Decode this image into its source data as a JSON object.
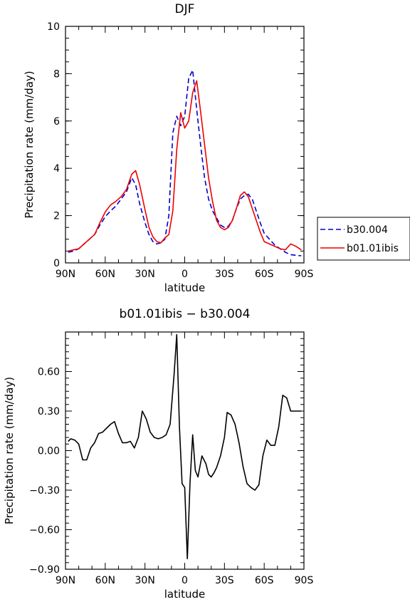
{
  "chart_data": [
    {
      "type": "line",
      "title": "DJF",
      "xlabel": "latitude",
      "ylabel": "Precipitation rate (mm/day)",
      "xlim": [
        90,
        -90
      ],
      "ylim": [
        0,
        10
      ],
      "x_ticks": [
        {
          "value": 90,
          "label": "90N"
        },
        {
          "value": 60,
          "label": "60N"
        },
        {
          "value": 30,
          "label": "30N"
        },
        {
          "value": 0,
          "label": "0"
        },
        {
          "value": -30,
          "label": "30S"
        },
        {
          "value": -60,
          "label": "60S"
        },
        {
          "value": -90,
          "label": "90S"
        }
      ],
      "y_ticks": [
        {
          "value": 0,
          "label": "0"
        },
        {
          "value": 2,
          "label": "2"
        },
        {
          "value": 4,
          "label": "4"
        },
        {
          "value": 6,
          "label": "6"
        },
        {
          "value": 8,
          "label": "8"
        },
        {
          "value": 10,
          "label": "10"
        }
      ],
      "legend": "right",
      "series": [
        {
          "name": "b30.004",
          "color": "#0000cc",
          "dash": "dashed",
          "x": [
            88,
            84,
            80,
            76,
            72,
            68,
            64,
            60,
            56,
            52,
            48,
            44,
            40,
            37,
            34,
            30,
            27,
            24,
            21,
            18,
            15,
            12,
            9,
            6,
            3,
            0,
            -3,
            -6,
            -9,
            -12,
            -15,
            -18,
            -21,
            -24,
            -27,
            -30,
            -33,
            -36,
            -39,
            -42,
            -45,
            -48,
            -51,
            -54,
            -57,
            -60,
            -64,
            -68,
            -72,
            -76,
            -80,
            -84,
            -88
          ],
          "y": [
            0.45,
            0.5,
            0.6,
            0.8,
            1.0,
            1.2,
            1.6,
            1.95,
            2.2,
            2.4,
            2.7,
            3.0,
            3.6,
            3.3,
            2.5,
            1.7,
            1.2,
            0.9,
            0.8,
            0.85,
            1.0,
            2.0,
            5.5,
            6.2,
            5.8,
            6.2,
            7.8,
            8.15,
            6.5,
            5.0,
            3.6,
            2.7,
            2.2,
            1.9,
            1.6,
            1.5,
            1.55,
            1.8,
            2.3,
            2.7,
            2.85,
            2.9,
            2.7,
            2.2,
            1.7,
            1.25,
            1.0,
            0.75,
            0.6,
            0.45,
            0.35,
            0.32,
            0.3
          ]
        },
        {
          "name": "b01.01ibis",
          "color": "#ee0000",
          "dash": "solid",
          "x": [
            88,
            84,
            80,
            76,
            72,
            68,
            64,
            60,
            56,
            52,
            48,
            44,
            40,
            37,
            34,
            30,
            27,
            24,
            21,
            18,
            15,
            12,
            9,
            6,
            3,
            0,
            -3,
            -6,
            -9,
            -12,
            -15,
            -18,
            -21,
            -24,
            -27,
            -30,
            -33,
            -36,
            -39,
            -42,
            -45,
            -48,
            -51,
            -54,
            -57,
            -60,
            -64,
            -68,
            -72,
            -76,
            -80,
            -84,
            -88
          ],
          "y": [
            0.5,
            0.55,
            0.6,
            0.8,
            1.0,
            1.2,
            1.7,
            2.15,
            2.45,
            2.6,
            2.8,
            3.1,
            3.75,
            3.9,
            3.3,
            2.25,
            1.5,
            1.1,
            0.9,
            0.85,
            1.05,
            1.2,
            2.2,
            4.8,
            6.35,
            5.7,
            6.0,
            7.2,
            7.7,
            6.4,
            5.0,
            3.6,
            2.6,
            1.8,
            1.5,
            1.4,
            1.5,
            1.8,
            2.3,
            2.85,
            3.0,
            2.8,
            2.3,
            1.8,
            1.3,
            0.9,
            0.8,
            0.7,
            0.6,
            0.55,
            0.8,
            0.7,
            0.55
          ]
        }
      ]
    },
    {
      "type": "line",
      "title": "b01.01ibis − b30.004",
      "xlabel": "latitude",
      "ylabel": "Precipitation rate (mm/day)",
      "xlim": [
        90,
        -90
      ],
      "ylim": [
        -0.9,
        0.9
      ],
      "x_ticks": [
        {
          "value": 90,
          "label": "90N"
        },
        {
          "value": 60,
          "label": "60N"
        },
        {
          "value": 30,
          "label": "30N"
        },
        {
          "value": 0,
          "label": "0"
        },
        {
          "value": -30,
          "label": "30S"
        },
        {
          "value": -60,
          "label": "60S"
        },
        {
          "value": -90,
          "label": "90S"
        }
      ],
      "y_ticks": [
        {
          "value": -0.9,
          "label": "−0.90"
        },
        {
          "value": -0.6,
          "label": "−0.60"
        },
        {
          "value": -0.3,
          "label": "−0.30"
        },
        {
          "value": 0,
          "label": "0.00"
        },
        {
          "value": 0.3,
          "label": "0.30"
        },
        {
          "value": 0.6,
          "label": "0.60"
        }
      ],
      "series": [
        {
          "color": "#000000",
          "dash": "solid",
          "x": [
            88,
            86,
            83,
            80,
            77,
            74,
            71,
            68,
            65,
            62,
            59,
            56,
            53,
            50,
            47,
            44,
            41,
            38,
            35,
            32,
            29,
            26,
            23,
            20,
            17,
            14,
            11,
            8,
            6,
            4,
            2,
            0,
            -2,
            -4,
            -6,
            -8,
            -10,
            -13,
            -16,
            -18,
            -20,
            -22,
            -24,
            -27,
            -30,
            -32,
            -35,
            -38,
            -41,
            -44,
            -47,
            -50,
            -53,
            -56,
            -59,
            -62,
            -65,
            -68,
            -71,
            -74,
            -77,
            -80,
            -83,
            -86,
            -88
          ],
          "y": [
            0.07,
            0.09,
            0.08,
            0.05,
            -0.07,
            -0.07,
            0.02,
            0.06,
            0.13,
            0.14,
            0.17,
            0.2,
            0.22,
            0.13,
            0.06,
            0.06,
            0.07,
            0.02,
            0.1,
            0.3,
            0.24,
            0.14,
            0.1,
            0.09,
            0.1,
            0.12,
            0.2,
            0.58,
            0.88,
            0.18,
            -0.25,
            -0.28,
            -0.82,
            -0.25,
            0.12,
            -0.15,
            -0.2,
            -0.04,
            -0.1,
            -0.18,
            -0.2,
            -0.17,
            -0.13,
            -0.04,
            0.1,
            0.29,
            0.27,
            0.2,
            0.06,
            -0.12,
            -0.25,
            -0.28,
            -0.3,
            -0.26,
            -0.04,
            0.08,
            0.04,
            0.04,
            0.18,
            0.42,
            0.4,
            0.3,
            0.3,
            0.3,
            0.3
          ]
        }
      ]
    }
  ]
}
